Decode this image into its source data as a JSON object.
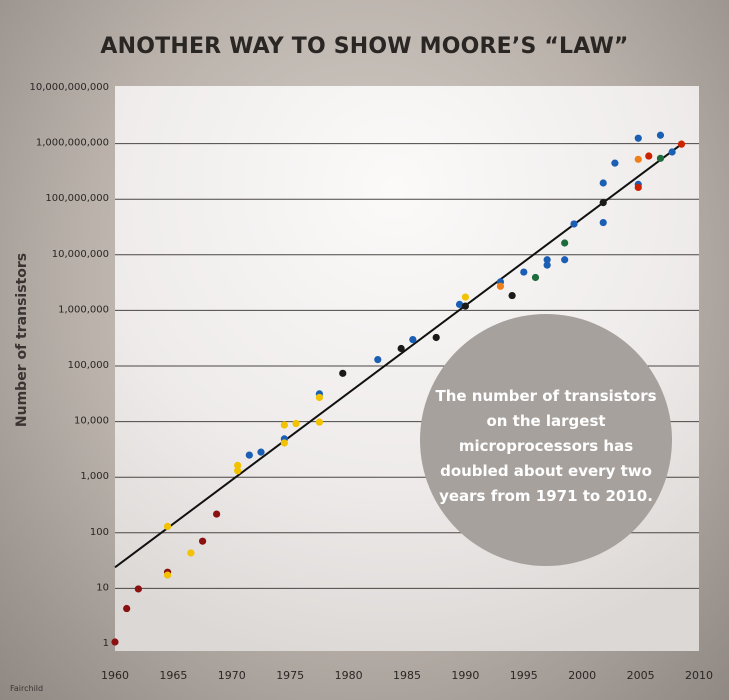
{
  "chart_data": {
    "type": "scatter",
    "title": "ANOTHER WAY TO SHOW MOORE’S “LAW”",
    "xlabel": "",
    "ylabel": "Number of transistors",
    "xlim": [
      1960,
      2010
    ],
    "ylim": [
      1,
      10000000000
    ],
    "yscale": "log",
    "grid": true,
    "x_ticks": [
      "1960",
      "1965",
      "1970",
      "1975",
      "1980",
      "1985",
      "1990",
      "1995",
      "2000",
      "2005",
      "2010"
    ],
    "y_ticks": [
      "1",
      "10",
      "100",
      "1,000",
      "10,000",
      "100,000",
      "1,000,000",
      "10,000,000",
      "100,000,000",
      "1,000,000,000",
      "10,000,000,000"
    ],
    "trend_line": {
      "points": [
        [
          1960,
          22
        ],
        [
          2008.5,
          900000000
        ]
      ]
    },
    "annotation": "The number of transistors on the largest microprocessors has doubled about every two years from 1971 to 2010.",
    "source_label": "Fairchild",
    "colors": {
      "blue": "#1a5fb4",
      "yellow": "#f2c200",
      "black": "#1a1a1a",
      "darkred": "#8b1010",
      "orange": "#ef7f1a",
      "green": "#1e6b3c",
      "red": "#cc2200"
    },
    "points": [
      {
        "x": 1960,
        "y": 1,
        "color": "darkred"
      },
      {
        "x": 1961,
        "y": 4,
        "color": "darkred"
      },
      {
        "x": 1962,
        "y": 9,
        "color": "darkred"
      },
      {
        "x": 1964.5,
        "y": 18,
        "color": "darkred"
      },
      {
        "x": 1964.5,
        "y": 16,
        "color": "yellow"
      },
      {
        "x": 1964.5,
        "y": 120,
        "color": "yellow"
      },
      {
        "x": 1966.5,
        "y": 40,
        "color": "yellow"
      },
      {
        "x": 1967.5,
        "y": 65,
        "color": "darkred"
      },
      {
        "x": 1968.7,
        "y": 200,
        "color": "darkred"
      },
      {
        "x": 1970.5,
        "y": 1500,
        "color": "yellow"
      },
      {
        "x": 1970.5,
        "y": 1200,
        "color": "yellow"
      },
      {
        "x": 1971.5,
        "y": 2300,
        "color": "blue"
      },
      {
        "x": 1972.5,
        "y": 2600,
        "color": "blue"
      },
      {
        "x": 1974.5,
        "y": 4500,
        "color": "blue"
      },
      {
        "x": 1974.5,
        "y": 8000,
        "color": "yellow"
      },
      {
        "x": 1974.5,
        "y": 3800,
        "color": "yellow"
      },
      {
        "x": 1975.5,
        "y": 8500,
        "color": "yellow"
      },
      {
        "x": 1977.5,
        "y": 29000,
        "color": "blue"
      },
      {
        "x": 1977.5,
        "y": 25000,
        "color": "yellow"
      },
      {
        "x": 1977.5,
        "y": 9000,
        "color": "yellow"
      },
      {
        "x": 1979.5,
        "y": 68000,
        "color": "black"
      },
      {
        "x": 1982.5,
        "y": 120000,
        "color": "blue"
      },
      {
        "x": 1984.5,
        "y": 190000,
        "color": "black"
      },
      {
        "x": 1985.5,
        "y": 275000,
        "color": "blue"
      },
      {
        "x": 1987.5,
        "y": 300000,
        "color": "black"
      },
      {
        "x": 1989.5,
        "y": 1180000,
        "color": "blue"
      },
      {
        "x": 1990,
        "y": 1600000,
        "color": "yellow"
      },
      {
        "x": 1990,
        "y": 1100000,
        "color": "black"
      },
      {
        "x": 1993,
        "y": 3000000,
        "color": "blue"
      },
      {
        "x": 1993,
        "y": 2500000,
        "color": "orange"
      },
      {
        "x": 1994,
        "y": 1700000,
        "color": "black"
      },
      {
        "x": 1995,
        "y": 4500000,
        "color": "blue"
      },
      {
        "x": 1996,
        "y": 3600000,
        "color": "green"
      },
      {
        "x": 1997,
        "y": 7500000,
        "color": "blue"
      },
      {
        "x": 1997,
        "y": 6000000,
        "color": "blue"
      },
      {
        "x": 1998.5,
        "y": 15000000,
        "color": "green"
      },
      {
        "x": 1998.5,
        "y": 7500000,
        "color": "blue"
      },
      {
        "x": 1999.3,
        "y": 33000000,
        "color": "blue"
      },
      {
        "x": 2001.8,
        "y": 80000000,
        "color": "black"
      },
      {
        "x": 2001.8,
        "y": 180000000,
        "color": "blue"
      },
      {
        "x": 2001.8,
        "y": 35000000,
        "color": "blue"
      },
      {
        "x": 2002.8,
        "y": 410000000,
        "color": "blue"
      },
      {
        "x": 2004.8,
        "y": 1150000000,
        "color": "blue"
      },
      {
        "x": 2004.8,
        "y": 480000000,
        "color": "orange"
      },
      {
        "x": 2004.8,
        "y": 170000000,
        "color": "blue"
      },
      {
        "x": 2004.8,
        "y": 150000000,
        "color": "red"
      },
      {
        "x": 2005.7,
        "y": 550000000,
        "color": "red"
      },
      {
        "x": 2006.7,
        "y": 1300000000,
        "color": "blue"
      },
      {
        "x": 2006.7,
        "y": 500000000,
        "color": "green"
      },
      {
        "x": 2007.7,
        "y": 650000000,
        "color": "blue"
      },
      {
        "x": 2008.5,
        "y": 900000000,
        "color": "red"
      }
    ]
  }
}
